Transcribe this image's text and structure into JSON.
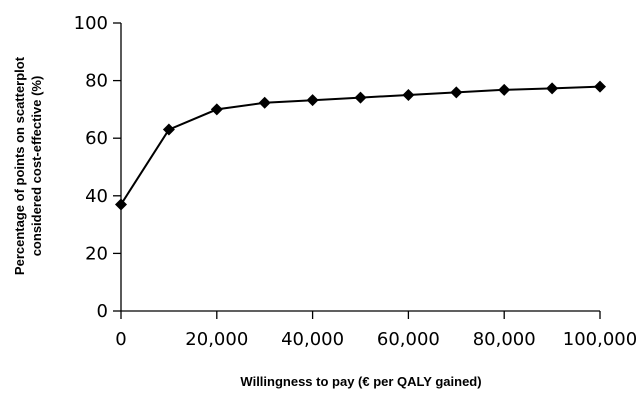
{
  "chart_data": {
    "type": "line",
    "title": "",
    "xlabel": "Willingness to pay (€ per QALY gained)",
    "ylabel_lines": [
      "Percentage of points on scatterplot",
      "considered cost-effective (%)"
    ],
    "xlim": [
      0,
      100000
    ],
    "ylim": [
      0,
      100
    ],
    "x_ticks": [
      0,
      20000,
      40000,
      60000,
      80000,
      100000
    ],
    "x_tick_labels": [
      "0",
      "20,000",
      "40,000",
      "60,000",
      "80,000",
      "100,000"
    ],
    "y_ticks": [
      0,
      20,
      40,
      60,
      80,
      100
    ],
    "y_tick_labels": [
      "0",
      "20",
      "40",
      "60",
      "80",
      "100"
    ],
    "grid": false,
    "legend": "none",
    "marker": "diamond",
    "line_color": "#000000",
    "series": [
      {
        "x": [
          0,
          10000,
          20000,
          30000,
          40000,
          50000,
          60000,
          70000,
          80000,
          90000,
          100000
        ],
        "values": [
          37,
          63,
          70,
          72.3,
          73.2,
          74.1,
          75,
          75.9,
          76.8,
          77.3,
          77.9
        ]
      }
    ]
  }
}
